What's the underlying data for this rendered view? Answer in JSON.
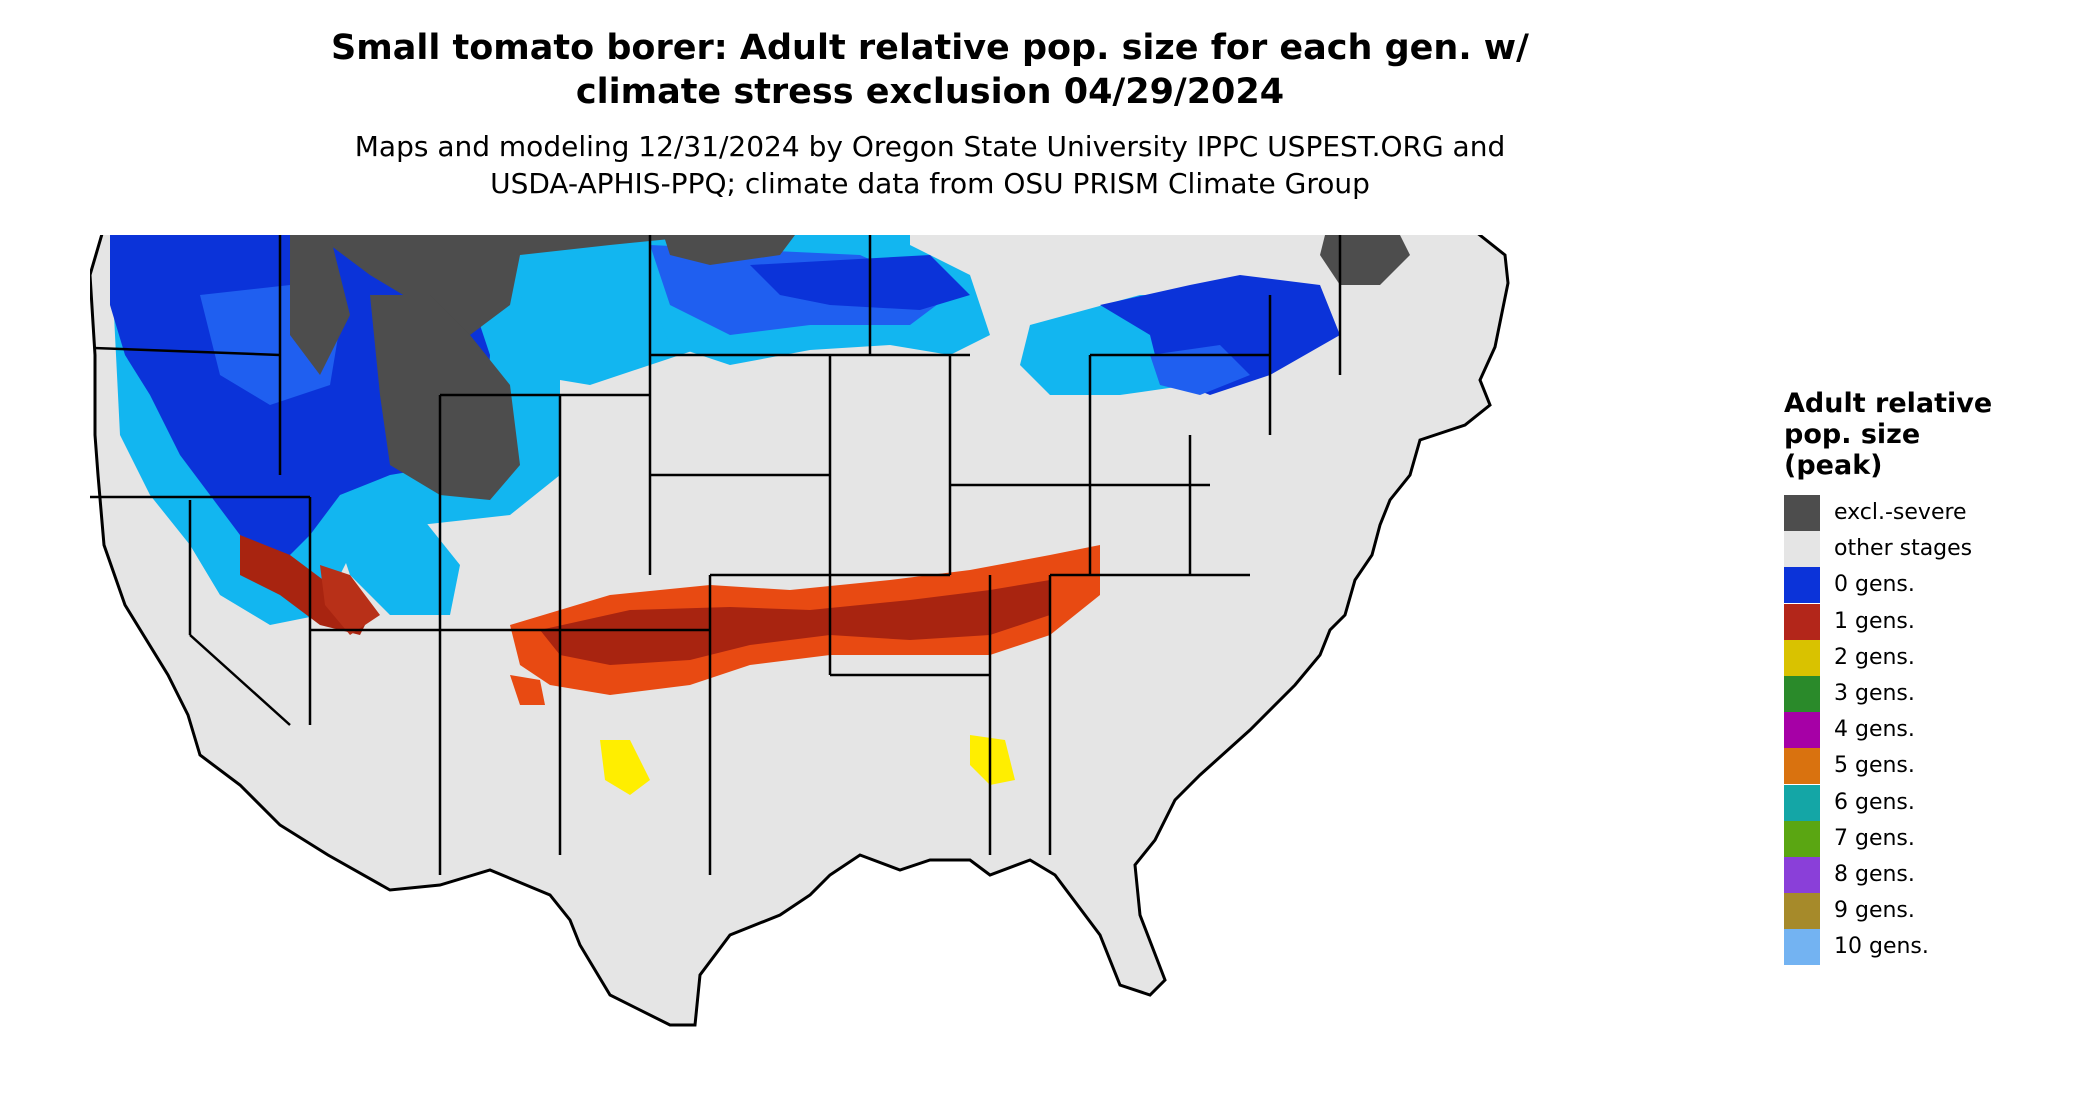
{
  "title": "Small tomato borer: Adult relative pop. size for each gen. w/\nclimate stress exclusion 04/29/2024",
  "subtitle": "Maps and modeling 12/31/2024 by Oregon State University IPPC USPEST.ORG and\nUSDA-APHIS-PPQ; climate data from OSU PRISM Climate Group",
  "legend": {
    "title": "Adult relative\npop. size\n(peak)",
    "items": [
      {
        "label": "excl.-severe",
        "color": "#4d4d4d"
      },
      {
        "label": "other stages",
        "color": "#e5e5e5"
      },
      {
        "label": "0 gens.",
        "color": "#0b33d9"
      },
      {
        "label": "1 gens.",
        "color": "#b3261a"
      },
      {
        "label": "2 gens.",
        "color": "#d9c200"
      },
      {
        "label": "3 gens.",
        "color": "#2a8a2a"
      },
      {
        "label": "4 gens.",
        "color": "#a600a6"
      },
      {
        "label": "5 gens.",
        "color": "#d9720f"
      },
      {
        "label": "6 gens.",
        "color": "#14a6a6"
      },
      {
        "label": "7 gens.",
        "color": "#5aa612"
      },
      {
        "label": "8 gens.",
        "color": "#8a3fd9"
      },
      {
        "label": "9 gens.",
        "color": "#a68a2a"
      },
      {
        "label": "10 gens.",
        "color": "#73b3f2"
      }
    ]
  },
  "map_colors": {
    "land": "#e5e5e5",
    "excluded": "#4d4d4d",
    "gen0_dark": "#0b33d9",
    "gen0_mid": "#1f5ff0",
    "gen0_light": "#12b6f0",
    "gen1_dark": "#a82410",
    "gen1_mid": "#e84a12",
    "gen2": "#ffee00",
    "border": "#000000"
  }
}
